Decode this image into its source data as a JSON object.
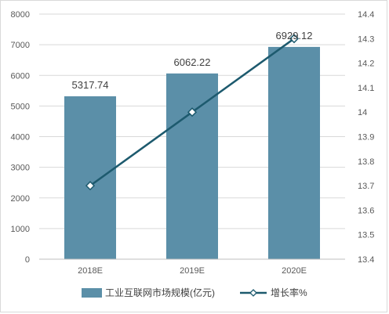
{
  "chart_data": {
    "type": "bar",
    "categories": [
      "2018E",
      "2019E",
      "2020E"
    ],
    "series": [
      {
        "name": "工业互联网市场规模(亿元)",
        "chart_type": "bar",
        "axis": "left",
        "values": [
          5317.74,
          6062.22,
          6929.12
        ],
        "data_labels": [
          "5317.74",
          "6062.22",
          "6929.12"
        ],
        "color": "#5b8fa8"
      },
      {
        "name": "增长率%",
        "chart_type": "line",
        "axis": "right",
        "values": [
          13.7,
          14.0,
          14.3
        ],
        "color": "#1d5a6e",
        "marker": "diamond"
      }
    ],
    "y_left": {
      "min": 0,
      "max": 8000,
      "ticks": [
        "0",
        "1000",
        "2000",
        "3000",
        "4000",
        "5000",
        "6000",
        "7000",
        "8000"
      ]
    },
    "y_right": {
      "min": 13.4,
      "max": 14.4,
      "ticks": [
        "13.4",
        "13.5",
        "13.6",
        "13.7",
        "13.8",
        "13.9",
        "14",
        "14.1",
        "14.2",
        "14.3",
        "14.4"
      ]
    },
    "grid": true,
    "legend_position": "bottom"
  }
}
